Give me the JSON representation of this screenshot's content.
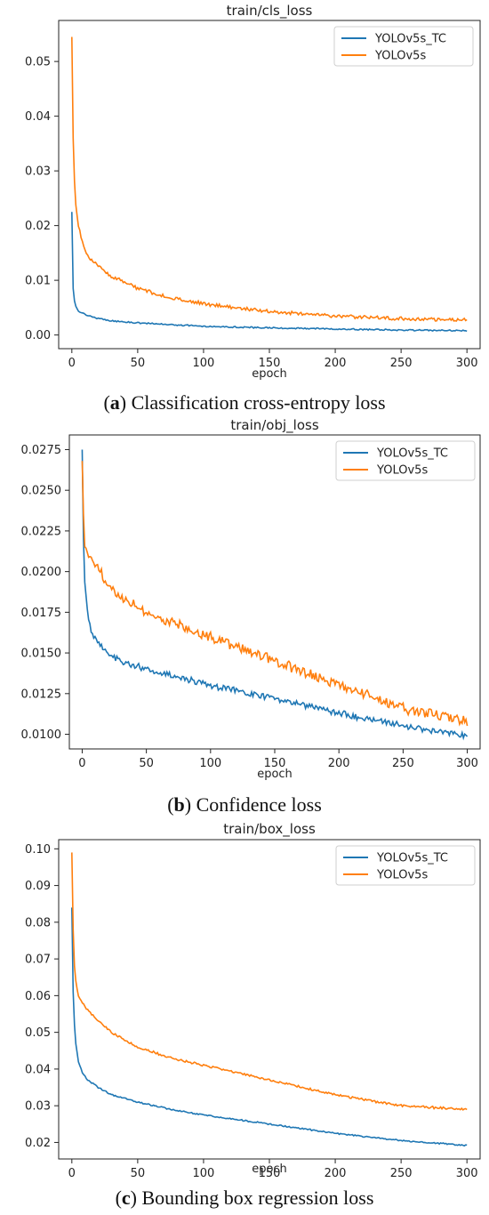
{
  "colors": {
    "tc": "#1f77b4",
    "base": "#ff7f0e"
  },
  "panels": [
    {
      "title": "train/cls_loss",
      "xlabel": "epoch",
      "caption": {
        "open": "(",
        "tag": "a",
        "text": ") Classification cross-entropy loss"
      }
    },
    {
      "title": "train/obj_loss",
      "xlabel": "epoch",
      "caption": {
        "open": "(",
        "tag": "b",
        "text": ") Confidence loss"
      }
    },
    {
      "title": "train/box_loss",
      "xlabel": "epoch",
      "caption": {
        "open": "(",
        "tag": "c",
        "text": ") Bounding box regression loss"
      }
    }
  ],
  "chart_data": [
    {
      "type": "line",
      "title": "train/cls_loss",
      "xlabel": "epoch",
      "ylabel": "",
      "xlim": [
        -10,
        310
      ],
      "ylim": [
        -0.0025,
        0.0575
      ],
      "xticks": [
        0,
        50,
        100,
        150,
        200,
        250,
        300
      ],
      "xtick_labels": [
        "0",
        "50",
        "100",
        "150",
        "200",
        "250",
        "300"
      ],
      "yticks": [
        0.0,
        0.01,
        0.02,
        0.03,
        0.04,
        0.05
      ],
      "ytick_labels": [
        "0.00",
        "0.01",
        "0.02",
        "0.03",
        "0.04",
        "0.05"
      ],
      "legend": "top-right",
      "grid": false,
      "series": [
        {
          "name": "YOLOv5s_TC",
          "color": "#1f77b4",
          "x": [
            0,
            1,
            2,
            3,
            5,
            8,
            12,
            20,
            30,
            50,
            75,
            100,
            150,
            200,
            250,
            300
          ],
          "values": [
            0.0225,
            0.0085,
            0.0062,
            0.0052,
            0.0044,
            0.004,
            0.0036,
            0.003,
            0.0026,
            0.0022,
            0.0019,
            0.0016,
            0.0013,
            0.0011,
            0.0009,
            0.0008
          ],
          "noise": 0.00012
        },
        {
          "name": "YOLOv5s",
          "color": "#ff7f0e",
          "x": [
            0,
            1,
            2,
            3,
            5,
            8,
            12,
            20,
            30,
            50,
            75,
            100,
            150,
            200,
            250,
            300
          ],
          "values": [
            0.0545,
            0.036,
            0.028,
            0.024,
            0.02,
            0.017,
            0.0145,
            0.0125,
            0.0108,
            0.0085,
            0.0068,
            0.0057,
            0.0043,
            0.0035,
            0.003,
            0.0027
          ],
          "noise": 0.0003
        }
      ]
    },
    {
      "type": "line",
      "title": "train/obj_loss",
      "xlabel": "epoch",
      "ylabel": "",
      "xlim": [
        -10,
        310
      ],
      "ylim": [
        0.0091,
        0.0284
      ],
      "xticks": [
        0,
        50,
        100,
        150,
        200,
        250,
        300
      ],
      "xtick_labels": [
        "0",
        "50",
        "100",
        "150",
        "200",
        "250",
        "300"
      ],
      "yticks": [
        0.01,
        0.0125,
        0.015,
        0.0175,
        0.02,
        0.0225,
        0.025,
        0.0275
      ],
      "ytick_labels": [
        "0.0100",
        "0.0125",
        "0.0150",
        "0.0175",
        "0.0200",
        "0.0225",
        "0.0250",
        "0.0275"
      ],
      "legend": "top-right",
      "grid": false,
      "series": [
        {
          "name": "YOLOv5s_TC",
          "color": "#1f77b4",
          "x": [
            0,
            1,
            2,
            4,
            6,
            8,
            12,
            20,
            30,
            50,
            75,
            100,
            150,
            200,
            250,
            300
          ],
          "values": [
            0.0275,
            0.022,
            0.0195,
            0.0175,
            0.0167,
            0.0162,
            0.0157,
            0.015,
            0.0145,
            0.014,
            0.0135,
            0.013,
            0.0122,
            0.0113,
            0.0105,
            0.0099
          ],
          "noise": 0.00018
        },
        {
          "name": "YOLOv5s",
          "color": "#ff7f0e",
          "x": [
            0,
            1,
            2,
            3,
            5,
            8,
            12,
            20,
            30,
            50,
            75,
            100,
            150,
            200,
            250,
            300
          ],
          "values": [
            0.0268,
            0.0235,
            0.0218,
            0.0212,
            0.021,
            0.0206,
            0.0202,
            0.0193,
            0.0185,
            0.0175,
            0.0167,
            0.016,
            0.0145,
            0.013,
            0.0116,
            0.0108
          ],
          "noise": 0.0003
        }
      ]
    },
    {
      "type": "line",
      "title": "train/box_loss",
      "xlabel": "epoch",
      "ylabel": "",
      "xlim": [
        -10,
        310
      ],
      "ylim": [
        0.0155,
        0.1025
      ],
      "xticks": [
        0,
        50,
        100,
        150,
        200,
        250,
        300
      ],
      "xtick_labels": [
        "0",
        "50",
        "100",
        "150",
        "200",
        "250",
        "300"
      ],
      "yticks": [
        0.02,
        0.03,
        0.04,
        0.05,
        0.06,
        0.07,
        0.08,
        0.09,
        0.1
      ],
      "ytick_labels": [
        "0.02",
        "0.03",
        "0.04",
        "0.05",
        "0.06",
        "0.07",
        "0.08",
        "0.09",
        "0.10"
      ],
      "legend": "top-right",
      "grid": false,
      "series": [
        {
          "name": "YOLOv5s_TC",
          "color": "#1f77b4",
          "x": [
            0,
            1,
            2,
            3,
            5,
            8,
            12,
            20,
            30,
            50,
            75,
            100,
            150,
            200,
            250,
            300
          ],
          "values": [
            0.084,
            0.061,
            0.052,
            0.047,
            0.042,
            0.039,
            0.037,
            0.035,
            0.033,
            0.031,
            0.029,
            0.0275,
            0.025,
            0.0225,
            0.0205,
            0.0192
          ],
          "noise": 0.00018
        },
        {
          "name": "YOLOv5s",
          "color": "#ff7f0e",
          "x": [
            0,
            1,
            2,
            3,
            5,
            8,
            12,
            20,
            30,
            50,
            75,
            100,
            150,
            200,
            250,
            300
          ],
          "values": [
            0.099,
            0.078,
            0.068,
            0.064,
            0.06,
            0.058,
            0.056,
            0.053,
            0.05,
            0.046,
            0.043,
            0.041,
            0.037,
            0.033,
            0.03,
            0.029
          ],
          "noise": 0.0003
        }
      ]
    }
  ]
}
